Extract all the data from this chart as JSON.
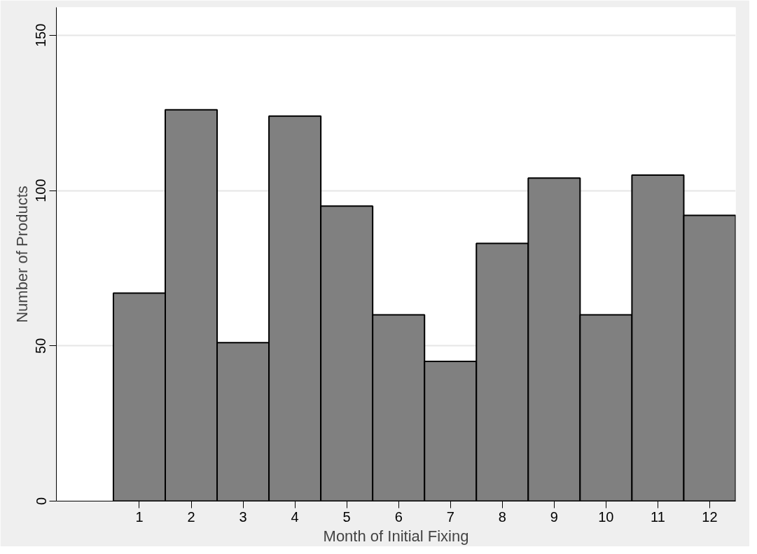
{
  "chart_data": {
    "type": "bar",
    "xlabel": "Month of Initial Fixing",
    "ylabel": "Number of Products",
    "x": [
      1,
      2,
      3,
      4,
      5,
      6,
      7,
      8,
      9,
      10,
      11,
      12
    ],
    "values": [
      67,
      126,
      51,
      124,
      95,
      60,
      45,
      83,
      104,
      60,
      105,
      92
    ],
    "color": "#808080",
    "xlim": [
      -0.6,
      12.5
    ],
    "xticks": [
      1,
      2,
      3,
      4,
      5,
      6,
      7,
      8,
      9,
      10,
      11,
      12
    ],
    "ylim": [
      0,
      159
    ],
    "yticks": [
      0,
      50,
      100,
      150
    ],
    "grid": "y"
  }
}
